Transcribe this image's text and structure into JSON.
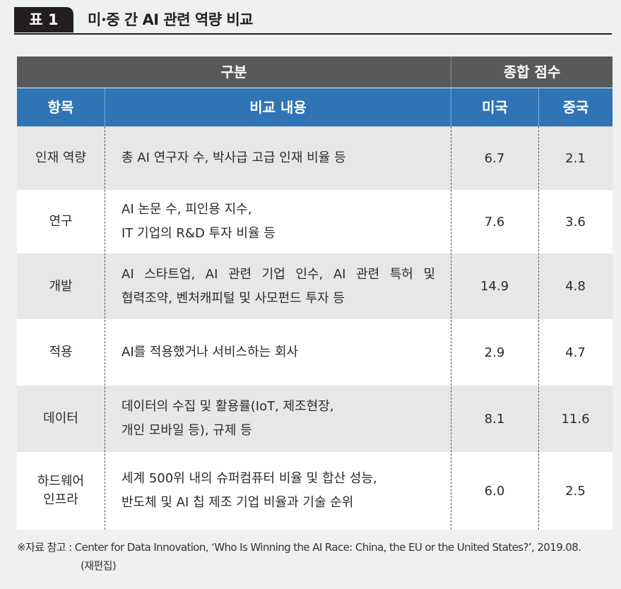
{
  "title": {
    "tag": "표 1",
    "text": "미·중 간 AI 관련 역량 비교"
  },
  "header": {
    "group_left": "구분",
    "group_right": "종합 점수",
    "col_item": "항목",
    "col_desc": "비교 내용",
    "col_usa": "미국",
    "col_china": "중국"
  },
  "rows": [
    {
      "item": [
        "인재 역량"
      ],
      "desc": [
        "총 AI 연구자 수, 박사급 고급 인재 비율 등"
      ],
      "usa": "6.7",
      "china": "2.1"
    },
    {
      "item": [
        "연구"
      ],
      "desc": [
        "AI 논문 수, 피인용 지수,",
        "IT 기업의 R&D 투자 비율 등"
      ],
      "usa": "7.6",
      "china": "3.6"
    },
    {
      "item": [
        "개발"
      ],
      "desc": [
        "AI 스타트업, AI 관련 기업 인수, AI 관련 특허 및",
        "협력조약, 벤처캐피털 및 사모펀드 투자 등"
      ],
      "usa": "14.9",
      "china": "4.8"
    },
    {
      "item": [
        "적용"
      ],
      "desc": [
        "AI를 적용했거나 서비스하는 회사"
      ],
      "usa": "2.9",
      "china": "4.7"
    },
    {
      "item": [
        "데이터"
      ],
      "desc": [
        "데이터의 수집 및 활용률(IoT, 제조현장,",
        "개인 모바일 등), 규제 등"
      ],
      "usa": "8.1",
      "china": "11.6"
    },
    {
      "item": [
        "하드웨어",
        "인프라"
      ],
      "desc": [
        "세계 500위 내의 슈퍼컴퓨터 비율 및 합산 성능,",
        "반도체 및 AI 칩 제조 기업 비율과 기술 순위"
      ],
      "usa": "6.0",
      "china": "2.5"
    }
  ],
  "note": {
    "line1": "※자료 참고 : Center for Data Innovation, ‘Who Is Winning the AI Race: China, the EU or the United States?’, 2019.08.",
    "line2": "(재편집)"
  }
}
